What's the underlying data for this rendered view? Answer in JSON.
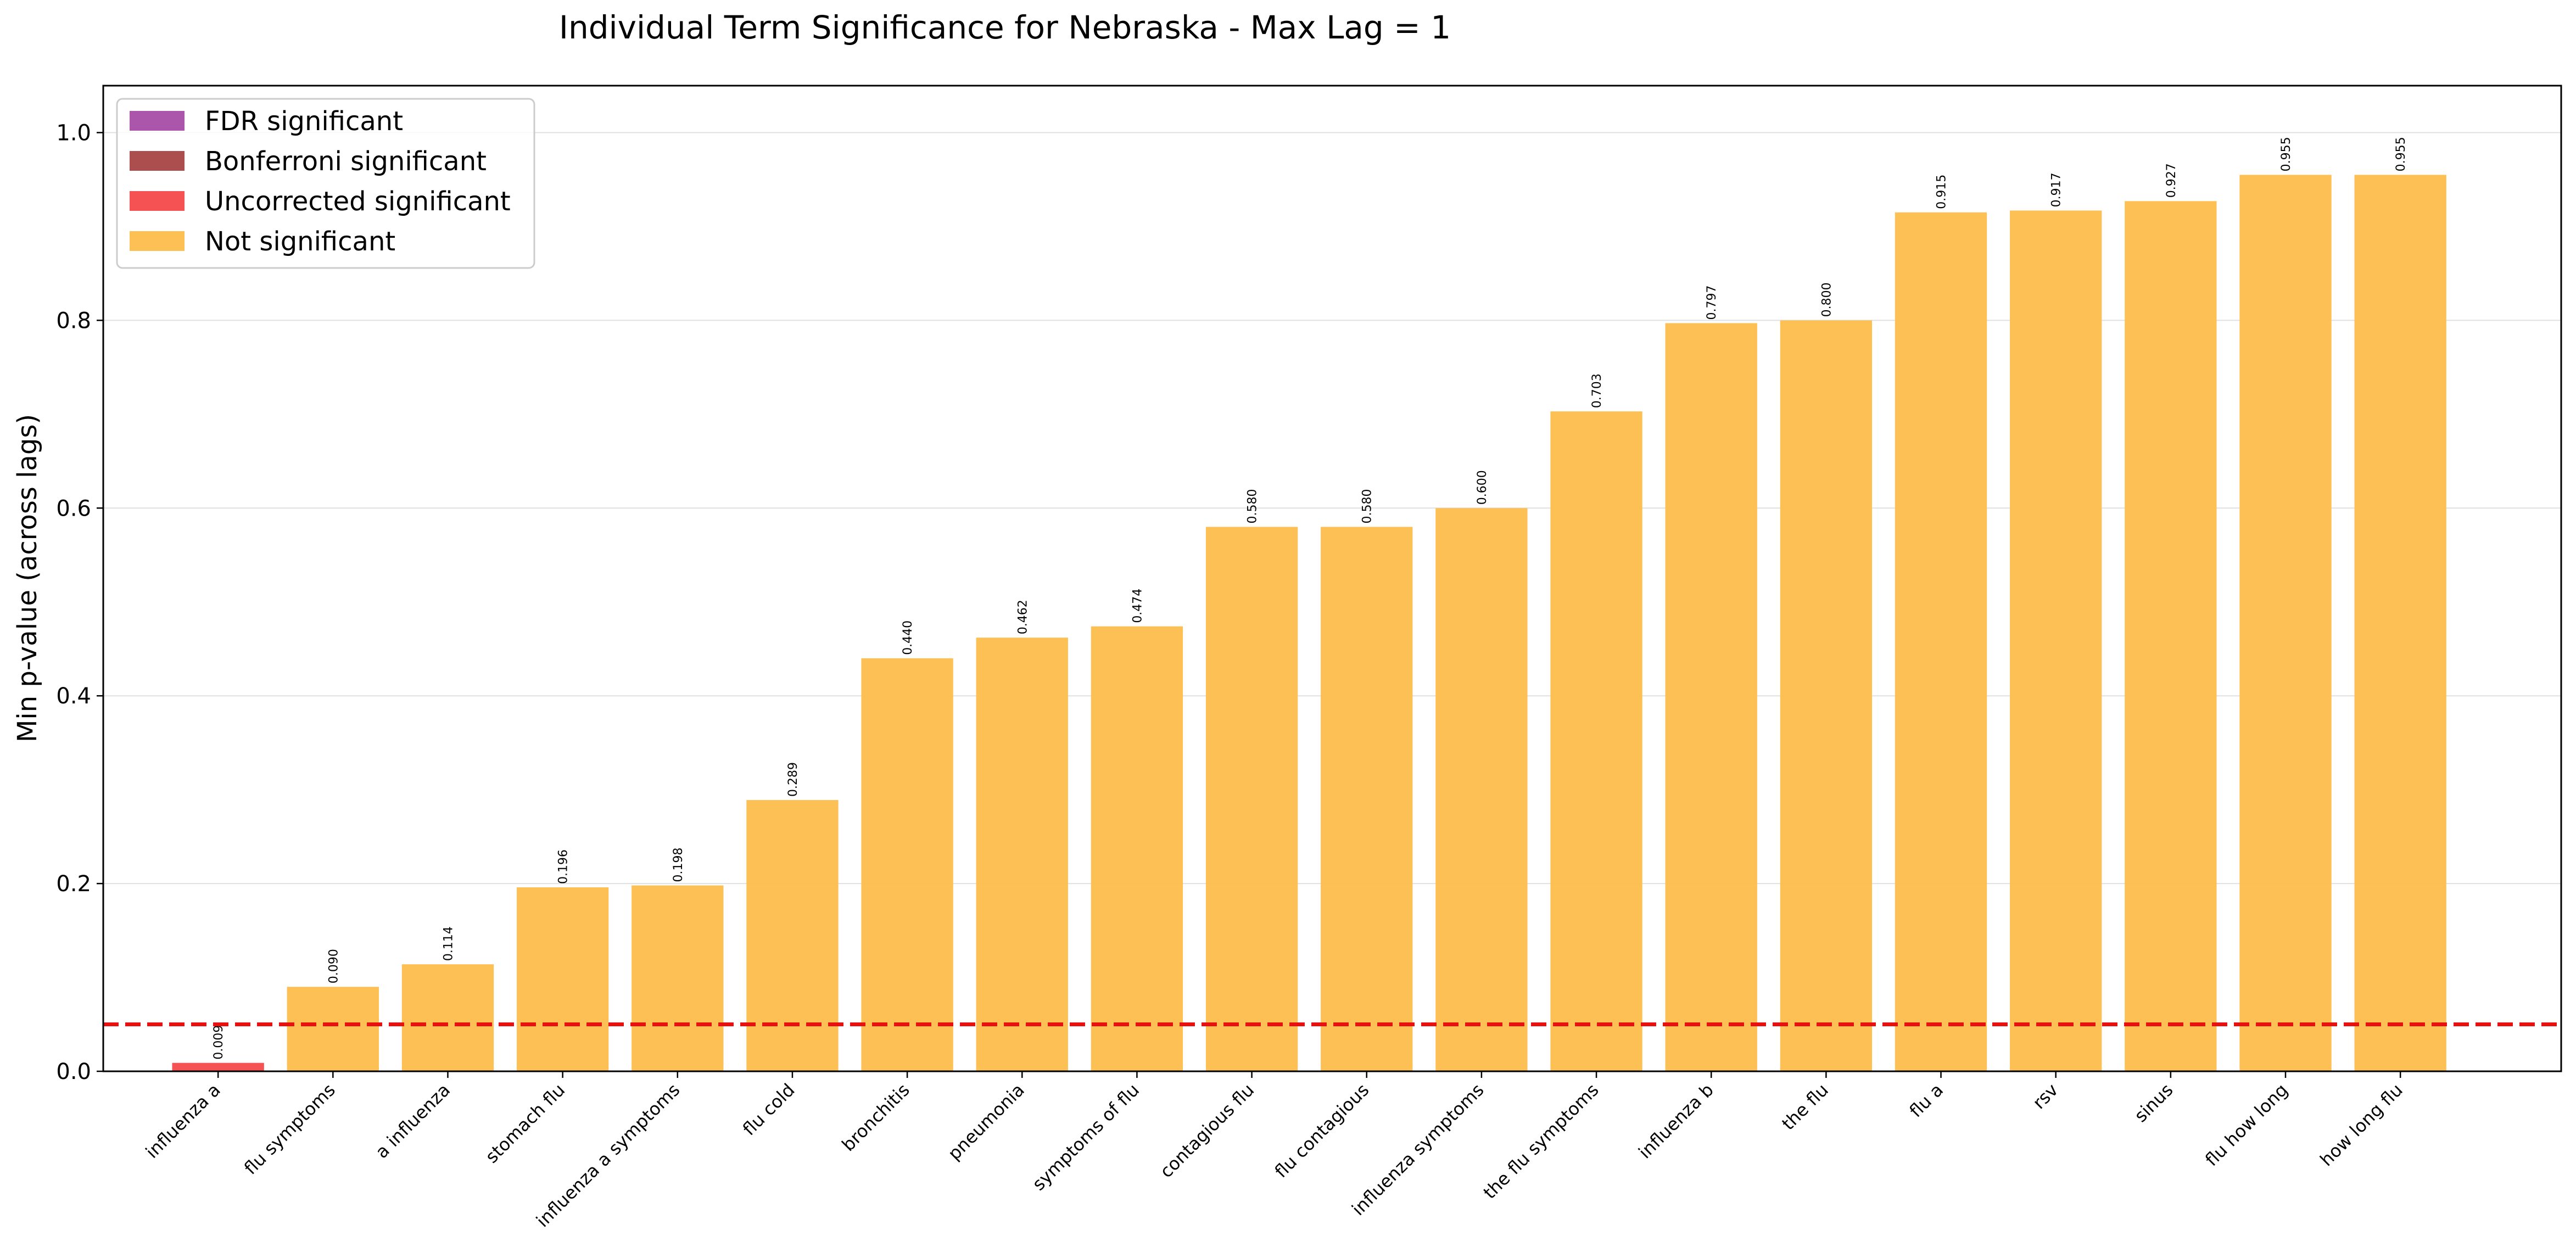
{
  "chart_data": {
    "type": "bar",
    "title": "Individual Term Significance for Nebraska - Max Lag = 1",
    "xlabel": "",
    "ylabel": "Min p-value (across lags)",
    "ylim": [
      0,
      1.05
    ],
    "yticks": [
      "0.0",
      "0.2",
      "0.4",
      "0.6",
      "0.8",
      "1.0"
    ],
    "grid": "horizontal",
    "threshold": 0.05,
    "legend_position": "top-left",
    "legend": [
      {
        "label": "FDR significant",
        "color": "#a64ca6"
      },
      {
        "label": "Bonferroni significant",
        "color": "#a84545"
      },
      {
        "label": "Uncorrected significant",
        "color": "#f44a4a"
      },
      {
        "label": "Not significant",
        "color": "#fdbd4c"
      }
    ],
    "categories": [
      "influenza a",
      "flu symptoms",
      "a influenza",
      "stomach flu",
      "influenza a symptoms",
      "flu cold",
      "bronchitis",
      "pneumonia",
      "symptoms of flu",
      "contagious flu",
      "flu contagious",
      "influenza symptoms",
      "the flu symptoms",
      "influenza b",
      "the flu",
      "flu a",
      "rsv",
      "sinus",
      "flu how long",
      "how long flu"
    ],
    "values": [
      0.009,
      0.09,
      0.114,
      0.196,
      0.198,
      0.289,
      0.44,
      0.462,
      0.474,
      0.58,
      0.58,
      0.6,
      0.703,
      0.797,
      0.8,
      0.915,
      0.917,
      0.927,
      0.955,
      0.955
    ],
    "labels": [
      "0.009",
      "0.090",
      "0.114",
      "0.196",
      "0.198",
      "0.289",
      "0.440",
      "0.462",
      "0.474",
      "0.580",
      "0.580",
      "0.600",
      "0.703",
      "0.797",
      "0.800",
      "0.915",
      "0.917",
      "0.927",
      "0.955",
      "0.955"
    ],
    "significance": [
      "uncorrected",
      "not",
      "not",
      "not",
      "not",
      "not",
      "not",
      "not",
      "not",
      "not",
      "not",
      "not",
      "not",
      "not",
      "not",
      "not",
      "not",
      "not",
      "not",
      "not"
    ],
    "colors": {
      "uncorrected": "#f44a4a",
      "not": "#fdbd4c",
      "threshold": "#e8110f"
    }
  }
}
